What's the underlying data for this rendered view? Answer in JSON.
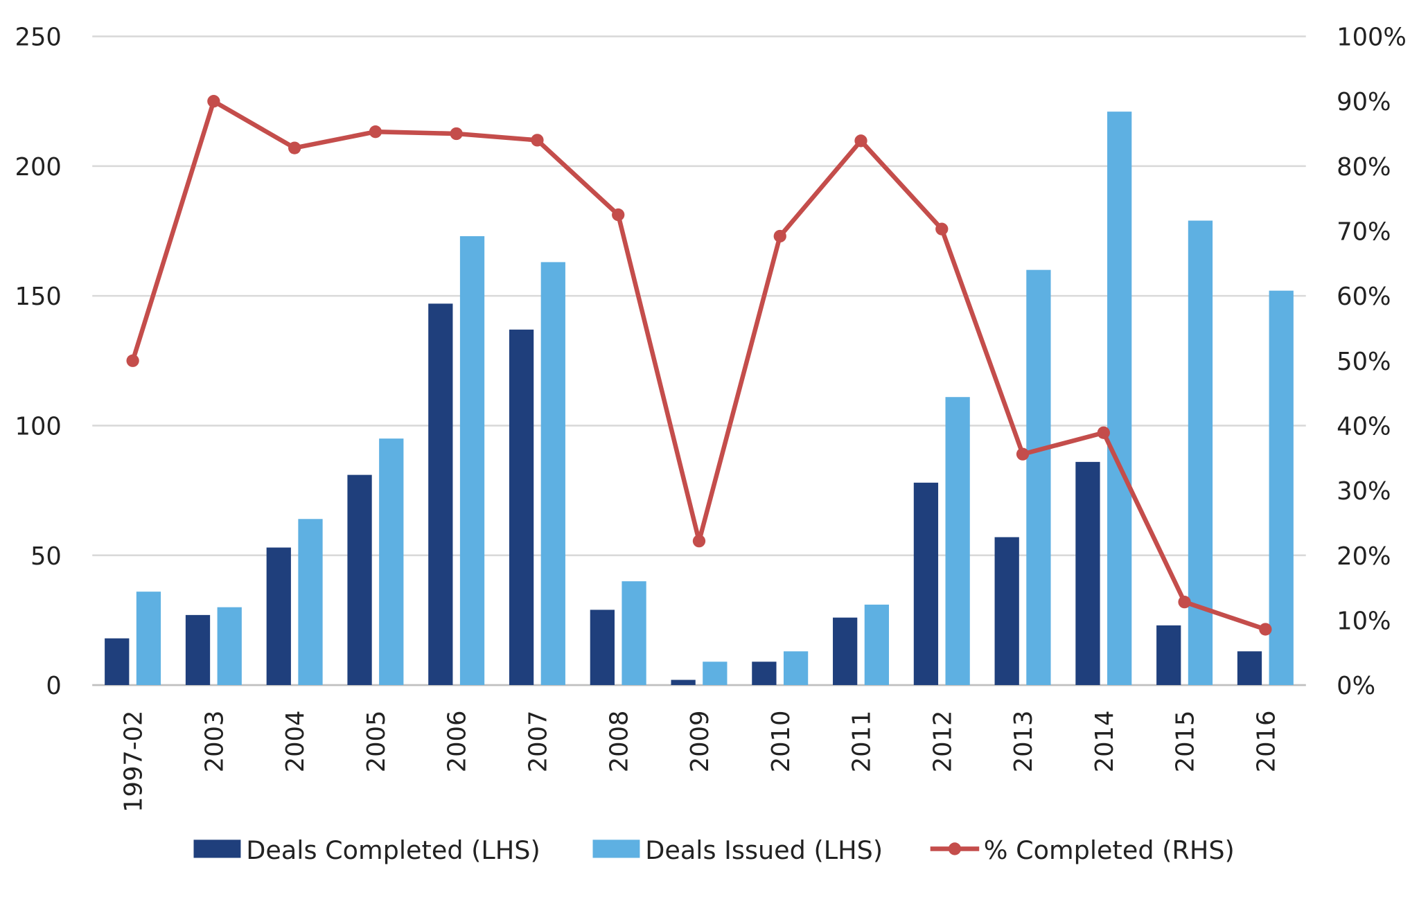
{
  "chart_data": {
    "type": "bar+line",
    "title": "",
    "categories": [
      "1997-02",
      "2003",
      "2004",
      "2005",
      "2006",
      "2007",
      "2008",
      "2009",
      "2010",
      "2011",
      "2012",
      "2013",
      "2014",
      "2015",
      "2016"
    ],
    "series": [
      {
        "name": "Deals Completed (LHS)",
        "type": "bar",
        "axis": "left",
        "color": "#1f3f7c",
        "values": [
          18,
          27,
          53,
          81,
          147,
          137,
          29,
          2,
          9,
          26,
          78,
          57,
          86,
          23,
          13
        ]
      },
      {
        "name": "Deals Issued (LHS)",
        "type": "bar",
        "axis": "left",
        "color": "#5eb0e2",
        "values": [
          36,
          30,
          64,
          95,
          173,
          163,
          40,
          9,
          13,
          31,
          111,
          160,
          221,
          179,
          152
        ]
      },
      {
        "name": "% Completed (RHS)",
        "type": "line",
        "axis": "right",
        "color": "#c44d4b",
        "values": [
          50,
          90,
          82.8,
          85.3,
          85,
          84,
          72.5,
          22.2,
          69.2,
          83.9,
          70.3,
          35.6,
          38.9,
          12.8,
          8.6
        ]
      }
    ],
    "left_axis": {
      "ylim": [
        0,
        250
      ],
      "ticks": [
        "0",
        "50",
        "100",
        "150",
        "200",
        "250"
      ]
    },
    "right_axis": {
      "ylim": [
        0,
        100
      ],
      "ticks": [
        "0%",
        "10%",
        "20%",
        "30%",
        "40%",
        "50%",
        "60%",
        "70%",
        "80%",
        "90%",
        "100%"
      ]
    },
    "grid": true,
    "legend_position": "bottom"
  }
}
